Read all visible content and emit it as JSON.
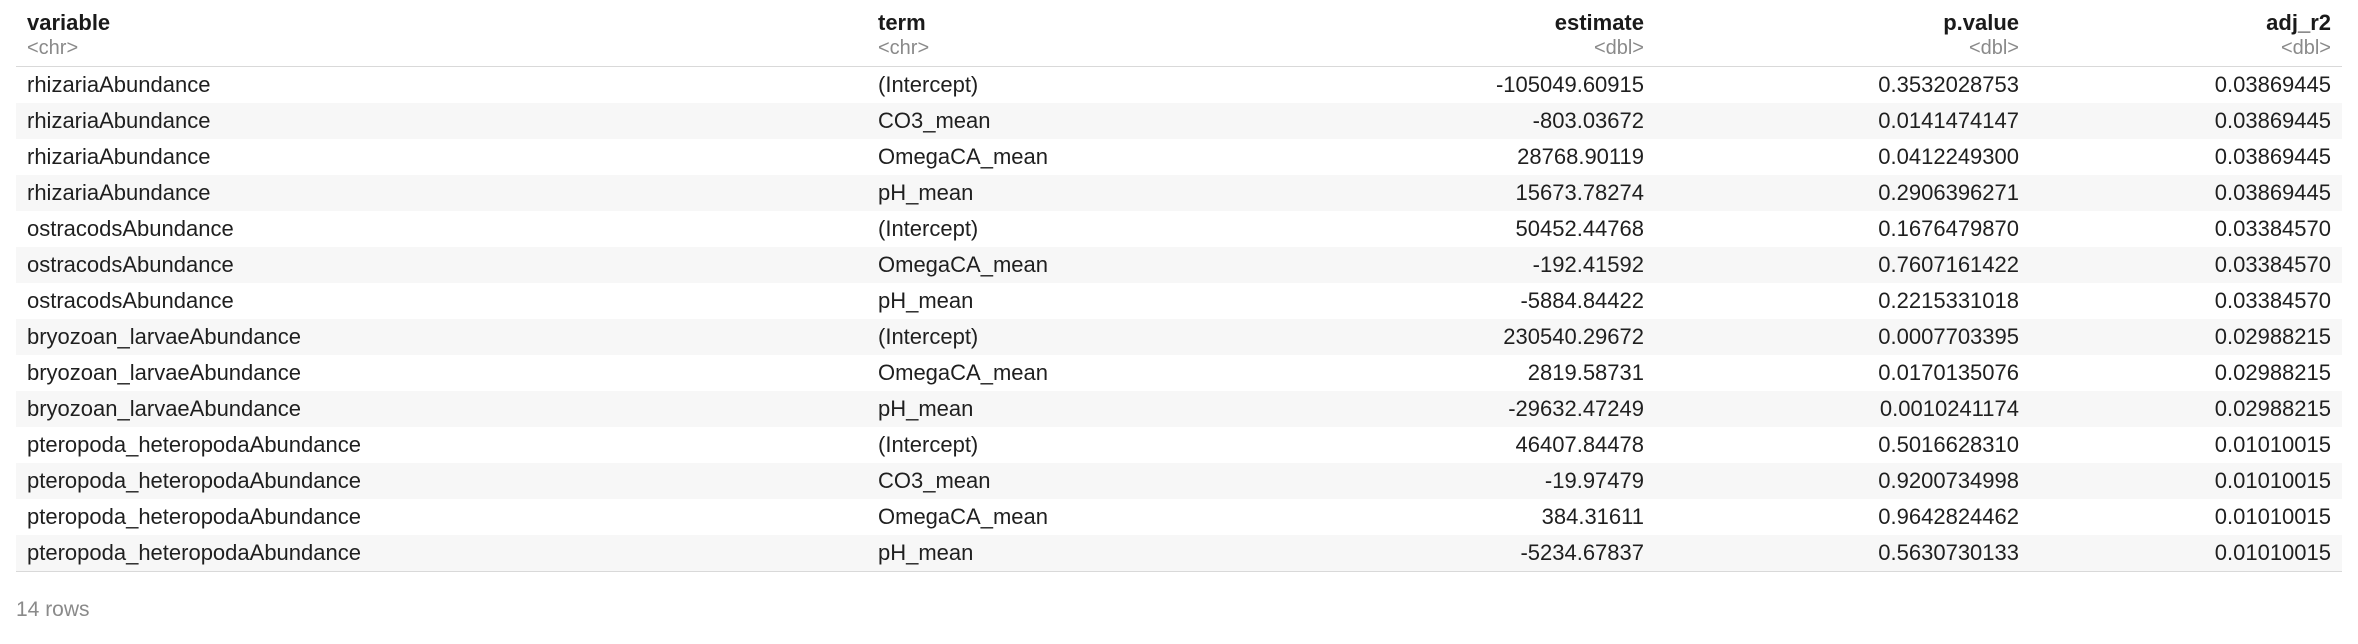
{
  "table": {
    "columns": [
      {
        "name": "variable",
        "type": "<chr>",
        "align": "left"
      },
      {
        "name": "term",
        "type": "<chr>",
        "align": "left"
      },
      {
        "name": "estimate",
        "type": "<dbl>",
        "align": "right"
      },
      {
        "name": "p.value",
        "type": "<dbl>",
        "align": "right"
      },
      {
        "name": "adj_r2",
        "type": "<dbl>",
        "align": "right"
      }
    ],
    "rows": [
      [
        "rhizariaAbundance",
        "(Intercept)",
        "-105049.60915",
        "0.3532028753",
        "0.03869445"
      ],
      [
        "rhizariaAbundance",
        "CO3_mean",
        "-803.03672",
        "0.0141474147",
        "0.03869445"
      ],
      [
        "rhizariaAbundance",
        "OmegaCA_mean",
        "28768.90119",
        "0.0412249300",
        "0.03869445"
      ],
      [
        "rhizariaAbundance",
        "pH_mean",
        "15673.78274",
        "0.2906396271",
        "0.03869445"
      ],
      [
        "ostracodsAbundance",
        "(Intercept)",
        "50452.44768",
        "0.1676479870",
        "0.03384570"
      ],
      [
        "ostracodsAbundance",
        "OmegaCA_mean",
        "-192.41592",
        "0.7607161422",
        "0.03384570"
      ],
      [
        "ostracodsAbundance",
        "pH_mean",
        "-5884.84422",
        "0.2215331018",
        "0.03384570"
      ],
      [
        "bryozoan_larvaeAbundance",
        "(Intercept)",
        "230540.29672",
        "0.0007703395",
        "0.02988215"
      ],
      [
        "bryozoan_larvaeAbundance",
        "OmegaCA_mean",
        "2819.58731",
        "0.0170135076",
        "0.02988215"
      ],
      [
        "bryozoan_larvaeAbundance",
        "pH_mean",
        "-29632.47249",
        "0.0010241174",
        "0.02988215"
      ],
      [
        "pteropoda_heteropodaAbundance",
        "(Intercept)",
        "46407.84478",
        "0.5016628310",
        "0.01010015"
      ],
      [
        "pteropoda_heteropodaAbundance",
        "CO3_mean",
        "-19.97479",
        "0.9200734998",
        "0.01010015"
      ],
      [
        "pteropoda_heteropodaAbundance",
        "OmegaCA_mean",
        "384.31611",
        "0.9642824462",
        "0.01010015"
      ],
      [
        "pteropoda_heteropodaAbundance",
        "pH_mean",
        "-5234.67837",
        "0.5630730133",
        "0.01010015"
      ]
    ]
  },
  "footer": {
    "row_count_label": "14 rows"
  }
}
